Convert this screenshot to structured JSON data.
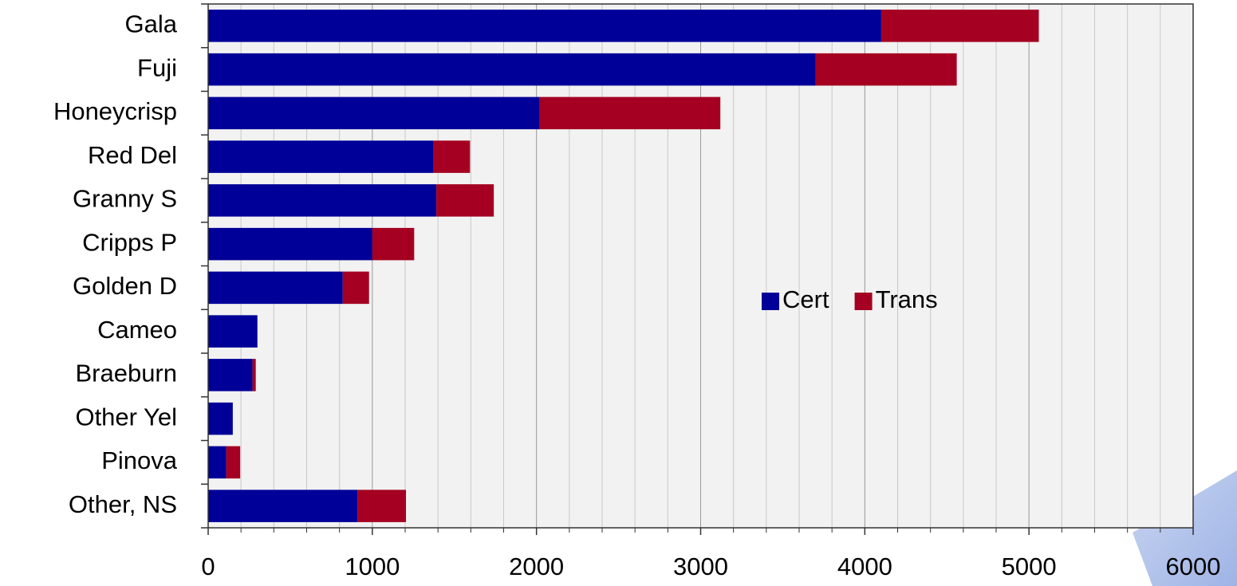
{
  "chart_data": {
    "type": "bar",
    "orientation": "horizontal",
    "stacked": true,
    "categories": [
      "Gala",
      "Fuji",
      "Honeycrisp",
      "Red Del",
      "Granny S",
      "Cripps P",
      "Golden D",
      "Cameo",
      "Braeburn",
      "Other Yel",
      "Pinova",
      "Other, NS"
    ],
    "series": [
      {
        "name": "Cert",
        "color": "#000099",
        "values": [
          4100,
          3700,
          2020,
          1370,
          1390,
          1000,
          820,
          300,
          270,
          150,
          110,
          910
        ]
      },
      {
        "name": "Trans",
        "color": "#a50021",
        "values": [
          960,
          860,
          1100,
          225,
          350,
          255,
          160,
          0,
          20,
          0,
          85,
          295
        ]
      }
    ],
    "xlim": [
      0,
      6000
    ],
    "xticks": [
      0,
      1000,
      2000,
      3000,
      4000,
      5000,
      6000
    ],
    "xminorticks": [
      200,
      400,
      600,
      800,
      1200,
      1400,
      1600,
      1800,
      2200,
      2400,
      2600,
      2800,
      3200,
      3400,
      3600,
      3800,
      4200,
      4400,
      4600,
      4800,
      5200,
      5400,
      5600,
      5800
    ],
    "grid": true,
    "legend": "center"
  }
}
